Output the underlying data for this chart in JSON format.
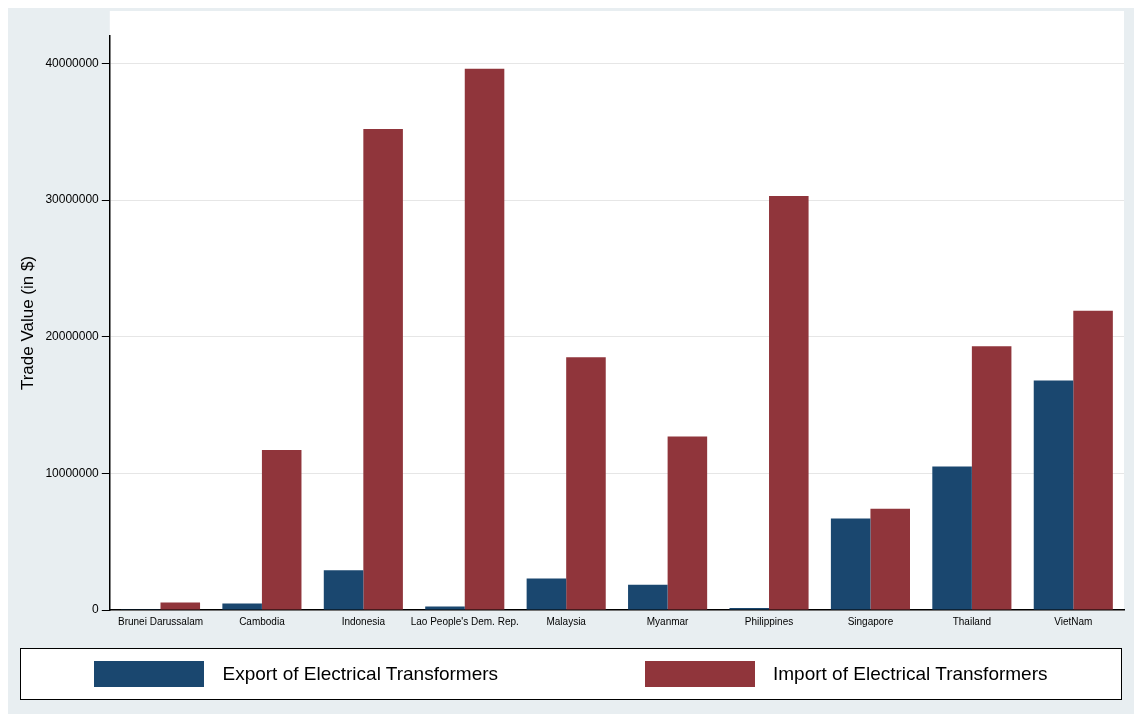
{
  "chart_data": {
    "type": "bar",
    "ylabel": "Trade Value (in $)",
    "categories": [
      "Brunei Darussalam",
      "Cambodia",
      "Indonesia",
      "Lao People's Dem. Rep.",
      "Malaysia",
      "Myanmar",
      "Philippines",
      "Singapore",
      "Thailand",
      "VietNam"
    ],
    "series": [
      {
        "name": "Export of Electrical Transformers",
        "color": "#1a476f",
        "values": [
          50000,
          470000,
          2900000,
          250000,
          2300000,
          1850000,
          150000,
          6700000,
          10500000,
          16800000
        ]
      },
      {
        "name": "Import of Electrical Transformers",
        "color": "#90353b",
        "values": [
          550000,
          11700000,
          35200000,
          39600000,
          18500000,
          12700000,
          30300000,
          7400000,
          19300000,
          21900000
        ]
      }
    ],
    "ylim": [
      0,
      42000000
    ],
    "yticks": [
      0,
      10000000,
      20000000,
      30000000,
      40000000
    ],
    "grid": "y",
    "legend": "bottom"
  }
}
